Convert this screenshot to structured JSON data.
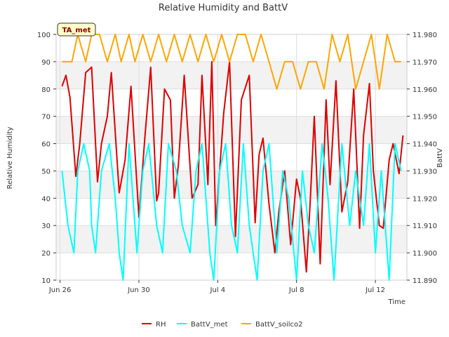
{
  "chart_data": {
    "type": "line",
    "title": "Relative Humidity and BattV",
    "xlabel": "Time",
    "ylabel_left": "Relative Humidity",
    "ylabel_right": "BattV",
    "badge": "TA_met",
    "ylim_left": [
      10,
      100
    ],
    "ylim_right": [
      11.89,
      11.98
    ],
    "yticks_left": [
      "10",
      "20",
      "30",
      "40",
      "50",
      "60",
      "70",
      "80",
      "90",
      "100"
    ],
    "yticks_right": [
      "11.890",
      "11.900",
      "11.910",
      "11.920",
      "11.930",
      "11.940",
      "11.950",
      "11.960",
      "11.970",
      "11.980"
    ],
    "xlim": [
      -0.2,
      17.6
    ],
    "xticks": [
      {
        "pos": 0,
        "label": "Jun 26"
      },
      {
        "pos": 4,
        "label": "Jun 30"
      },
      {
        "pos": 8,
        "label": "Jul 4"
      },
      {
        "pos": 12,
        "label": "Jul 8"
      },
      {
        "pos": 16,
        "label": "Jul 12"
      }
    ],
    "grid": true,
    "banded_background": true,
    "legend_position": "bottom-center",
    "series": [
      {
        "name": "RH",
        "axis": "left",
        "color": "#dd0000",
        "x": [
          0.1,
          0.3,
          0.5,
          0.8,
          1.0,
          1.3,
          1.6,
          1.9,
          2.1,
          2.4,
          2.6,
          3.0,
          3.3,
          3.6,
          4.0,
          4.3,
          4.6,
          4.9,
          5.0,
          5.3,
          5.6,
          5.8,
          6.0,
          6.3,
          6.7,
          7.0,
          7.2,
          7.5,
          7.7,
          7.9,
          8.3,
          8.6,
          8.9,
          9.2,
          9.6,
          9.9,
          10.1,
          10.3,
          10.6,
          10.9,
          11.1,
          11.4,
          11.7,
          12.0,
          12.2,
          12.5,
          12.7,
          12.9,
          13.2,
          13.5,
          13.7,
          14.0,
          14.3,
          14.6,
          14.9,
          15.2,
          15.4,
          15.7,
          15.9,
          16.2,
          16.4,
          16.7,
          16.9,
          17.2,
          17.4
        ],
        "values": [
          81,
          85,
          77,
          48,
          60,
          86,
          88,
          46,
          60,
          70,
          86,
          42,
          54,
          81,
          33,
          62,
          88,
          39,
          42,
          80,
          76,
          40,
          52,
          85,
          40,
          45,
          85,
          45,
          90,
          30,
          71,
          90,
          26,
          76,
          85,
          31,
          56,
          62,
          38,
          20,
          35,
          50,
          23,
          47,
          40,
          13,
          40,
          70,
          16,
          76,
          45,
          83,
          35,
          46,
          80,
          29,
          63,
          82,
          50,
          30,
          29,
          54,
          60,
          49,
          63
        ]
      },
      {
        "name": "BattV_met",
        "axis": "right",
        "color": "#00ffff",
        "x": [
          0.1,
          0.4,
          0.7,
          0.9,
          1.2,
          1.5,
          1.6,
          1.8,
          2.1,
          2.5,
          2.8,
          3.0,
          3.2,
          3.5,
          3.9,
          4.2,
          4.5,
          4.9,
          5.2,
          5.5,
          5.9,
          6.2,
          6.6,
          6.9,
          7.2,
          7.6,
          7.8,
          8.1,
          8.4,
          8.7,
          9.0,
          9.3,
          9.6,
          10.0,
          10.3,
          10.6,
          10.9,
          11.0,
          11.3,
          11.6,
          12.0,
          12.3,
          12.6,
          12.9,
          13.3,
          13.6,
          13.9,
          14.3,
          14.7,
          15.0,
          15.4,
          15.7,
          16.0,
          16.3,
          16.7,
          17.0,
          17.3
        ],
        "values": [
          11.93,
          11.91,
          11.9,
          11.93,
          11.94,
          11.93,
          11.91,
          11.9,
          11.93,
          11.94,
          11.92,
          11.9,
          11.89,
          11.94,
          11.9,
          11.93,
          11.94,
          11.91,
          11.9,
          11.94,
          11.93,
          11.91,
          11.9,
          11.93,
          11.94,
          11.9,
          11.89,
          11.93,
          11.94,
          11.91,
          11.9,
          11.94,
          11.91,
          11.89,
          11.93,
          11.94,
          11.91,
          11.9,
          11.93,
          11.92,
          11.89,
          11.93,
          11.91,
          11.9,
          11.94,
          11.92,
          11.89,
          11.94,
          11.91,
          11.93,
          11.91,
          11.94,
          11.9,
          11.93,
          11.89,
          11.94,
          11.93
        ]
      },
      {
        "name": "BattV_soilco2",
        "axis": "right",
        "color": "#ffa500",
        "x": [
          0.1,
          0.6,
          0.9,
          1.3,
          1.6,
          2.0,
          2.4,
          2.8,
          3.1,
          3.5,
          3.8,
          4.2,
          4.6,
          5.0,
          5.4,
          5.8,
          6.2,
          6.6,
          7.0,
          7.4,
          7.8,
          8.2,
          8.6,
          9.0,
          9.4,
          9.8,
          10.2,
          10.6,
          11.0,
          11.4,
          11.8,
          12.2,
          12.6,
          13.0,
          13.4,
          13.8,
          14.2,
          14.6,
          15.0,
          15.4,
          15.8,
          16.2,
          16.6,
          17.0,
          17.3
        ],
        "values": [
          11.97,
          11.97,
          11.98,
          11.97,
          11.98,
          11.98,
          11.97,
          11.98,
          11.97,
          11.98,
          11.97,
          11.98,
          11.97,
          11.98,
          11.97,
          11.98,
          11.97,
          11.98,
          11.97,
          11.98,
          11.97,
          11.98,
          11.97,
          11.98,
          11.98,
          11.97,
          11.98,
          11.97,
          11.96,
          11.97,
          11.97,
          11.96,
          11.97,
          11.97,
          11.96,
          11.98,
          11.97,
          11.98,
          11.96,
          11.97,
          11.98,
          11.96,
          11.98,
          11.97,
          11.97
        ]
      }
    ]
  }
}
